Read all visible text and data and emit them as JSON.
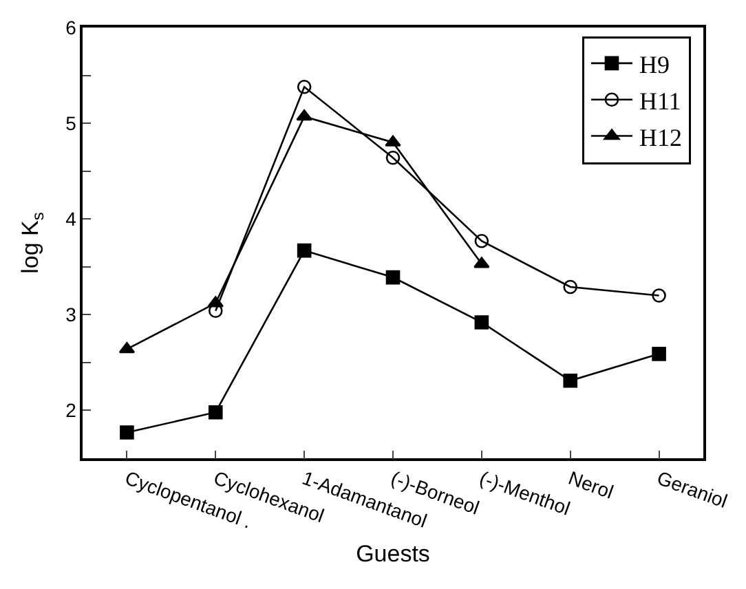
{
  "chart_data": {
    "type": "line",
    "xlabel": "Guests",
    "ylabel": "log K$_{s}$",
    "categories": [
      "Cyclopentanol .",
      "Cyclohexanol",
      "1-Adamantanol",
      "(-)-Borneol",
      "(-)-Menthol",
      "Nerol",
      "Geraniol"
    ],
    "series": [
      {
        "name": "H9",
        "color": "#000000",
        "marker": "square",
        "values": [
          1.77,
          1.98,
          3.67,
          3.39,
          2.92,
          2.31,
          2.59
        ]
      },
      {
        "name": "H11",
        "color": "#000000",
        "marker": "circle",
        "values": [
          null,
          3.04,
          5.38,
          4.64,
          3.77,
          3.29,
          3.2
        ]
      },
      {
        "name": "H12",
        "color": "#000000",
        "marker": "triangle",
        "values": [
          2.64,
          3.12,
          5.07,
          4.8,
          3.53,
          null,
          null
        ]
      }
    ],
    "ylim": [
      1.5,
      6
    ],
    "yticks": [
      2,
      {
        "value": 2.5,
        "label": null
      },
      3,
      {
        "value": 3.5,
        "label": null
      },
      4,
      {
        "value": 4.5,
        "label": null
      },
      5,
      {
        "value": 5.5,
        "label": null
      },
      6
    ],
    "legend": "top right",
    "line_style": "solid"
  }
}
